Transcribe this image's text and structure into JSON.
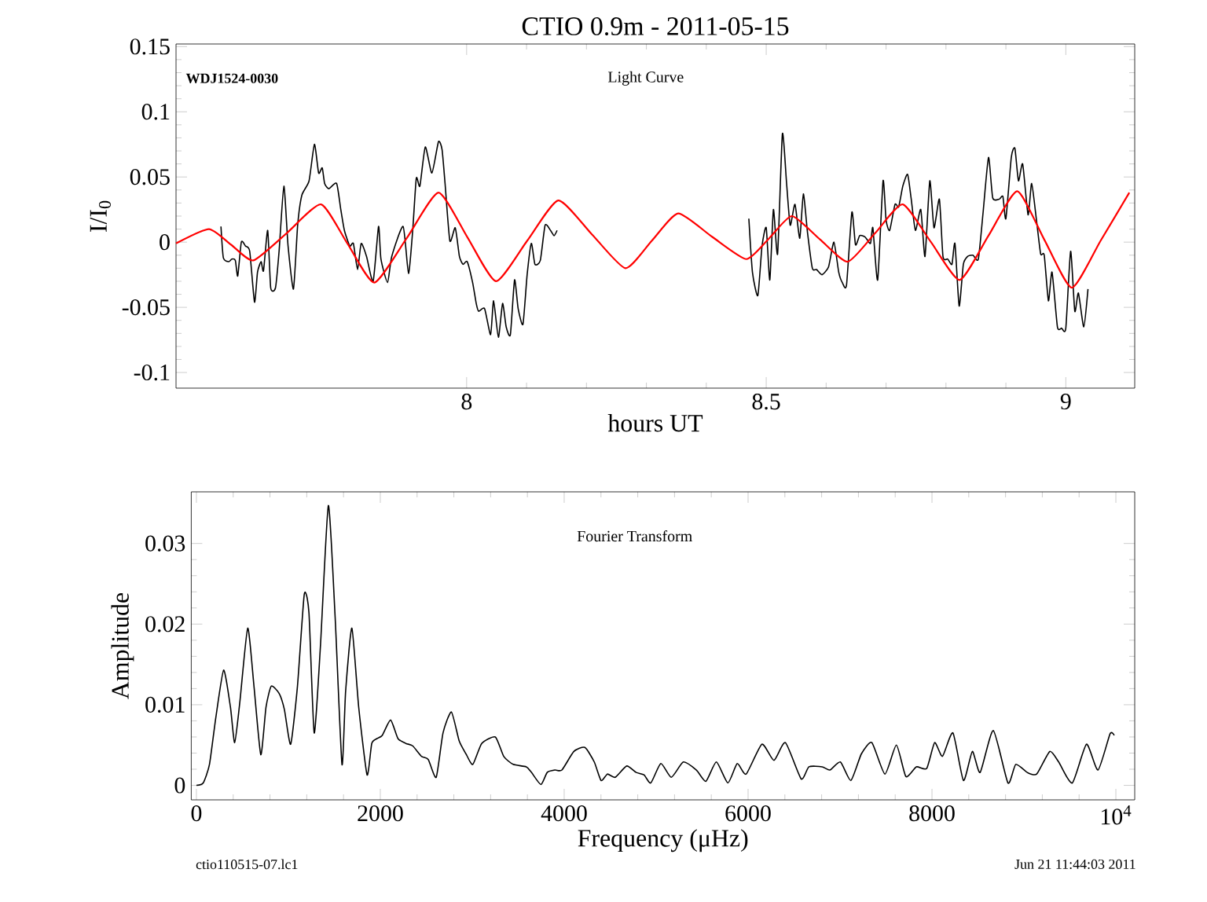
{
  "chart_data": [
    {
      "type": "line",
      "title": "CTIO 0.9m - 2011-05-15",
      "xlabel": "hours UT",
      "ylabel": "I/I$_{0}$",
      "annotations": [
        "WDJ1524-0030",
        "Light Curve"
      ],
      "xlim": [
        7.515,
        9.115
      ],
      "ylim": [
        -0.112,
        0.152
      ],
      "xticks": [
        8,
        8.5,
        9
      ],
      "yticks": [
        -0.1,
        -0.05,
        0,
        0.05,
        0.1,
        0.15
      ],
      "series": [
        {
          "color": "#000000",
          "x": [
            7.59,
            7.594,
            7.603,
            7.608,
            7.614,
            7.618,
            7.624,
            7.631,
            7.638,
            7.646,
            7.651,
            7.657,
            7.661,
            7.668,
            7.673,
            7.681,
            7.687,
            7.695,
            7.702,
            7.711,
            7.718,
            7.725,
            7.737,
            7.746,
            7.753,
            7.759,
            7.763,
            7.77,
            7.783,
            7.79,
            7.796,
            7.805,
            7.811,
            7.818,
            7.824,
            7.833,
            7.844,
            7.853,
            7.857,
            7.868,
            7.875,
            7.894,
            7.903,
            7.91,
            7.916,
            7.922,
            7.931,
            7.942,
            7.953,
            7.959,
            7.964,
            7.972,
            7.981,
            7.988,
            7.994,
            8.001,
            8.01,
            8.016,
            8.02,
            8.03,
            8.04,
            8.045,
            8.053,
            8.06,
            8.066,
            8.073,
            8.08,
            8.086,
            8.094,
            8.101,
            8.108,
            8.114,
            8.123,
            8.131,
            8.14,
            8.146,
            8.151
          ],
          "values": [
            0.012,
            -0.012,
            -0.015,
            -0.013,
            -0.014,
            -0.026,
            0.0,
            -0.003,
            -0.007,
            -0.046,
            -0.023,
            -0.015,
            -0.022,
            0.009,
            -0.035,
            -0.035,
            -0.007,
            0.043,
            -0.003,
            -0.036,
            0.013,
            0.036,
            0.047,
            0.075,
            0.053,
            0.057,
            0.045,
            0.041,
            0.045,
            0.025,
            0.009,
            -0.003,
            -0.001,
            -0.021,
            -0.001,
            -0.011,
            -0.03,
            0.012,
            -0.013,
            -0.031,
            -0.011,
            0.012,
            -0.024,
            0.009,
            0.049,
            0.043,
            0.073,
            0.053,
            0.077,
            0.071,
            0.045,
            0.001,
            0.011,
            -0.011,
            -0.017,
            -0.015,
            -0.031,
            -0.047,
            -0.053,
            -0.051,
            -0.071,
            -0.045,
            -0.073,
            -0.047,
            -0.065,
            -0.071,
            -0.029,
            -0.051,
            -0.063,
            -0.025,
            -0.001,
            -0.017,
            -0.014,
            0.013,
            0.009,
            0.005,
            0.009
          ]
        },
        {
          "color": "#000000",
          "x": [
            8.471,
            8.477,
            8.486,
            8.493,
            8.5,
            8.506,
            8.512,
            8.519,
            8.527,
            8.534,
            8.54,
            8.548,
            8.556,
            8.562,
            8.569,
            8.577,
            8.584,
            8.593,
            8.604,
            8.613,
            8.621,
            8.627,
            8.634,
            8.643,
            8.649,
            8.656,
            8.665,
            8.674,
            8.678,
            8.686,
            8.695,
            8.7,
            8.706,
            8.715,
            8.721,
            8.728,
            8.736,
            8.742,
            8.749,
            8.758,
            8.765,
            8.773,
            8.78,
            8.789,
            8.795,
            8.803,
            8.81,
            8.815,
            8.822,
            8.829,
            8.836,
            8.845,
            8.854,
            8.862,
            8.871,
            8.878,
            8.889,
            8.895,
            8.9,
            8.909,
            8.915,
            8.921,
            8.928,
            8.937,
            8.943,
            8.951,
            8.958,
            8.964,
            8.971,
            8.977,
            8.986,
            8.993,
            9.0,
            9.008,
            9.015,
            9.021,
            9.03,
            9.037
          ],
          "values": [
            0.018,
            -0.023,
            -0.041,
            -0.003,
            0.011,
            -0.029,
            0.025,
            -0.009,
            0.083,
            0.045,
            0.013,
            0.029,
            0.003,
            0.037,
            0.007,
            -0.02,
            -0.021,
            -0.025,
            -0.019,
            0.0,
            -0.023,
            -0.031,
            -0.033,
            0.023,
            -0.002,
            0.005,
            0.004,
            -0.001,
            0.011,
            -0.029,
            0.047,
            0.017,
            0.009,
            0.029,
            0.027,
            0.043,
            0.052,
            0.033,
            0.009,
            0.025,
            -0.011,
            0.047,
            0.011,
            0.033,
            -0.011,
            -0.013,
            -0.017,
            -0.001,
            -0.049,
            -0.017,
            -0.011,
            -0.01,
            -0.013,
            0.023,
            0.065,
            0.034,
            0.033,
            0.035,
            0.018,
            0.065,
            0.072,
            0.047,
            0.06,
            0.021,
            0.045,
            0.017,
            -0.009,
            -0.01,
            -0.045,
            -0.023,
            -0.065,
            -0.066,
            -0.066,
            -0.007,
            -0.053,
            -0.039,
            -0.065,
            -0.036
          ]
        },
        {
          "color": "#ff0000",
          "x": [
            7.515,
            7.57,
            7.607,
            7.644,
            7.7,
            7.757,
            7.801,
            7.846,
            7.9,
            7.953,
            8.001,
            8.049,
            8.101,
            8.153,
            8.209,
            8.265,
            8.309,
            8.353,
            8.41,
            8.467,
            8.505,
            8.543,
            8.59,
            8.636,
            8.682,
            8.728,
            8.775,
            8.823,
            8.871,
            8.919,
            8.964,
            9.01,
            9.058,
            9.106
          ],
          "values": [
            -0.001,
            0.01,
            -0.002,
            -0.014,
            0.007,
            0.029,
            -0.001,
            -0.031,
            0.003,
            0.038,
            0.004,
            -0.03,
            0.001,
            0.032,
            0.006,
            -0.02,
            0.001,
            0.022,
            0.004,
            -0.013,
            0.003,
            0.02,
            0.002,
            -0.015,
            0.007,
            0.029,
            0.0,
            -0.029,
            0.005,
            0.039,
            0.002,
            -0.035,
            0.001,
            0.038
          ]
        }
      ]
    },
    {
      "type": "line",
      "xlabel": "Frequency (μHz)",
      "ylabel": "Amplitude",
      "annotations": [
        "Fourier Transform",
        "ctio110515-07.lc1",
        "Jun 21 11:44:03 2011"
      ],
      "xlim": [
        -56,
        10205
      ],
      "ylim": [
        -0.0018,
        0.0364
      ],
      "xticks": [
        0,
        2000,
        4000,
        6000,
        8000,
        {
          "value": 10000,
          "label": "10$^{4}$"
        }
      ],
      "yticks": [
        0,
        0.01,
        0.02,
        0.03
      ],
      "color": "#000000",
      "x": [
        0,
        74,
        142,
        211,
        296,
        370,
        416,
        473,
        558,
        626,
        700,
        757,
        814,
        900,
        957,
        1025,
        1099,
        1173,
        1224,
        1281,
        1350,
        1435,
        1509,
        1583,
        1623,
        1691,
        1765,
        1856,
        1907,
        1964,
        2021,
        2112,
        2192,
        2278,
        2352,
        2448,
        2522,
        2608,
        2682,
        2773,
        2858,
        2932,
        3006,
        3103,
        3251,
        3342,
        3445,
        3587,
        3644,
        3747,
        3815,
        3900,
        3975,
        4105,
        4225,
        4327,
        4401,
        4470,
        4555,
        4680,
        4783,
        4868,
        4942,
        5051,
        5165,
        5296,
        5438,
        5541,
        5655,
        5780,
        5882,
        5979,
        6150,
        6281,
        6406,
        6577,
        6662,
        6805,
        6890,
        7004,
        7118,
        7232,
        7346,
        7488,
        7613,
        7716,
        7830,
        7943,
        8029,
        8114,
        8228,
        8342,
        8439,
        8524,
        8667,
        8826,
        8911,
        9036,
        9139,
        9281,
        9378,
        9526,
        9680,
        9806,
        9937,
        9982
      ],
      "values": [
        0,
        0.0003,
        0.0026,
        0.0084,
        0.0143,
        0.0097,
        0.0053,
        0.0104,
        0.0195,
        0.0123,
        0.0038,
        0.0097,
        0.0123,
        0.0114,
        0.0094,
        0.0051,
        0.0123,
        0.0237,
        0.0214,
        0.0065,
        0.0175,
        0.0347,
        0.0208,
        0.0026,
        0.0117,
        0.0195,
        0.0097,
        0.0013,
        0.0052,
        0.0058,
        0.0062,
        0.0081,
        0.0058,
        0.0052,
        0.0049,
        0.0036,
        0.0032,
        0.001,
        0.0065,
        0.0091,
        0.0055,
        0.0039,
        0.0026,
        0.0052,
        0.006,
        0.0036,
        0.0026,
        0.0023,
        0.0016,
        0.0001,
        0.0016,
        0.0019,
        0.0019,
        0.0042,
        0.0047,
        0.0029,
        0.0006,
        0.0014,
        0.001,
        0.0024,
        0.0016,
        0.0013,
        0.0003,
        0.0027,
        0.001,
        0.0029,
        0.0019,
        0.0005,
        0.0029,
        0.0003,
        0.0027,
        0.0014,
        0.0051,
        0.0031,
        0.0053,
        0.0008,
        0.0023,
        0.0023,
        0.0019,
        0.0029,
        0.0006,
        0.0039,
        0.0053,
        0.0014,
        0.005,
        0.0011,
        0.0023,
        0.0021,
        0.0053,
        0.0036,
        0.0065,
        0.0006,
        0.0042,
        0.0016,
        0.0068,
        0.0003,
        0.0026,
        0.0016,
        0.0014,
        0.0042,
        0.0029,
        0.0003,
        0.0051,
        0.0019,
        0.0064,
        0.0062
      ]
    }
  ]
}
